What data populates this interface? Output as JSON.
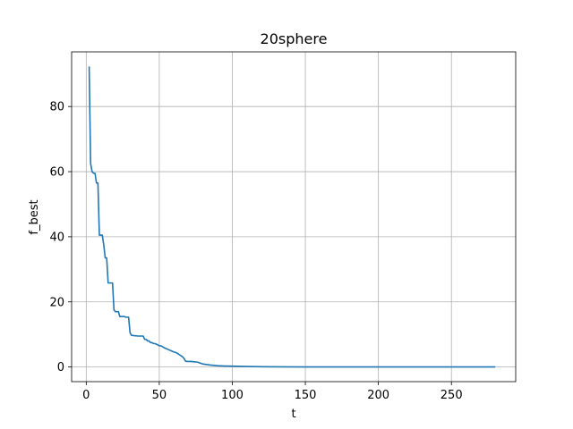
{
  "chart_data": {
    "type": "line",
    "title": "20sphere",
    "xlabel": "t",
    "ylabel": "f_best",
    "xlim": [
      -10,
      294
    ],
    "ylim": [
      -4.5,
      96.8
    ],
    "xticks": [
      0,
      50,
      100,
      150,
      200,
      250
    ],
    "yticks": [
      0,
      20,
      40,
      60,
      80
    ],
    "grid": true,
    "line_color": "#1f77b4",
    "series": [
      {
        "x": [
          2,
          3,
          4,
          5,
          6,
          7,
          8,
          9,
          10,
          11,
          12,
          13,
          14,
          15,
          16,
          17,
          18,
          19,
          20,
          21,
          22,
          23,
          24,
          25,
          26,
          27,
          28,
          29,
          30,
          31,
          32,
          33,
          34,
          35,
          36,
          37,
          38,
          39,
          40,
          41,
          42,
          43,
          44,
          45,
          46,
          47,
          48,
          49,
          50,
          51,
          52,
          53,
          54,
          55,
          56,
          57,
          58,
          59,
          60,
          61,
          62,
          63,
          64,
          65,
          66,
          67,
          68,
          69,
          70,
          72,
          74,
          76,
          78,
          80,
          85,
          90,
          95,
          100,
          110,
          120,
          130,
          150,
          200,
          250,
          280
        ],
        "y": [
          92.3,
          62.5,
          60.0,
          59.5,
          59.5,
          56.5,
          56.5,
          40.5,
          40.5,
          40.5,
          37.5,
          33.5,
          33.5,
          25.8,
          25.8,
          25.8,
          25.8,
          17.5,
          17.0,
          17.0,
          17.0,
          15.5,
          15.5,
          15.5,
          15.5,
          15.3,
          15.3,
          15.3,
          10.5,
          9.7,
          9.7,
          9.6,
          9.6,
          9.5,
          9.5,
          9.5,
          9.5,
          9.5,
          8.5,
          8.5,
          8.0,
          8.0,
          7.5,
          7.5,
          7.2,
          7.2,
          7.0,
          6.8,
          6.5,
          6.5,
          6.3,
          6.0,
          5.8,
          5.6,
          5.4,
          5.2,
          5.0,
          4.8,
          4.6,
          4.5,
          4.3,
          4.0,
          3.7,
          3.4,
          3.1,
          2.6,
          1.8,
          1.7,
          1.7,
          1.7,
          1.6,
          1.5,
          1.2,
          0.9,
          0.6,
          0.4,
          0.3,
          0.25,
          0.15,
          0.08,
          0.05,
          0.02,
          0.01,
          0.005,
          0.002
        ]
      }
    ]
  }
}
